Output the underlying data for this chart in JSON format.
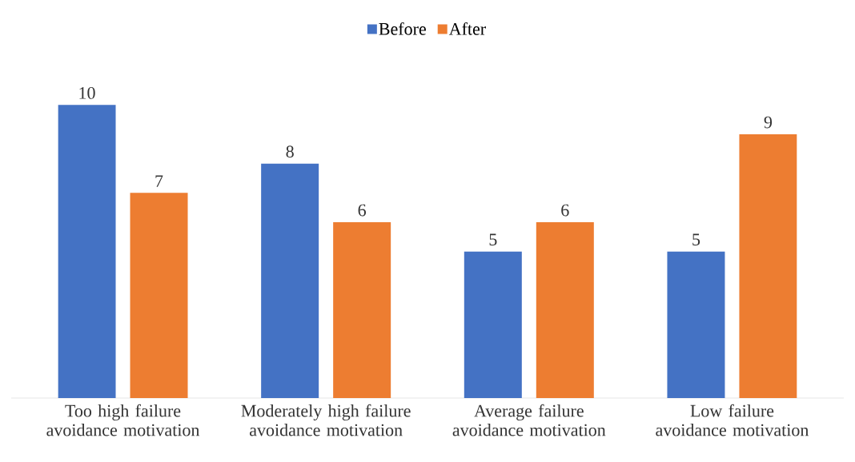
{
  "chart_data": {
    "type": "bar",
    "categories": [
      "Too high failure avoidance motivation",
      "Moderately high failure avoidance motivation",
      "Average failure avoidance motivation",
      "Low failure avoidance motivation"
    ],
    "series": [
      {
        "name": "Before",
        "color": "#4472c4",
        "values": [
          10,
          8,
          5,
          5
        ]
      },
      {
        "name": "After",
        "color": "#ed7d31",
        "values": [
          7,
          6,
          6,
          9
        ]
      }
    ],
    "data_labels": true,
    "legend": "top"
  }
}
